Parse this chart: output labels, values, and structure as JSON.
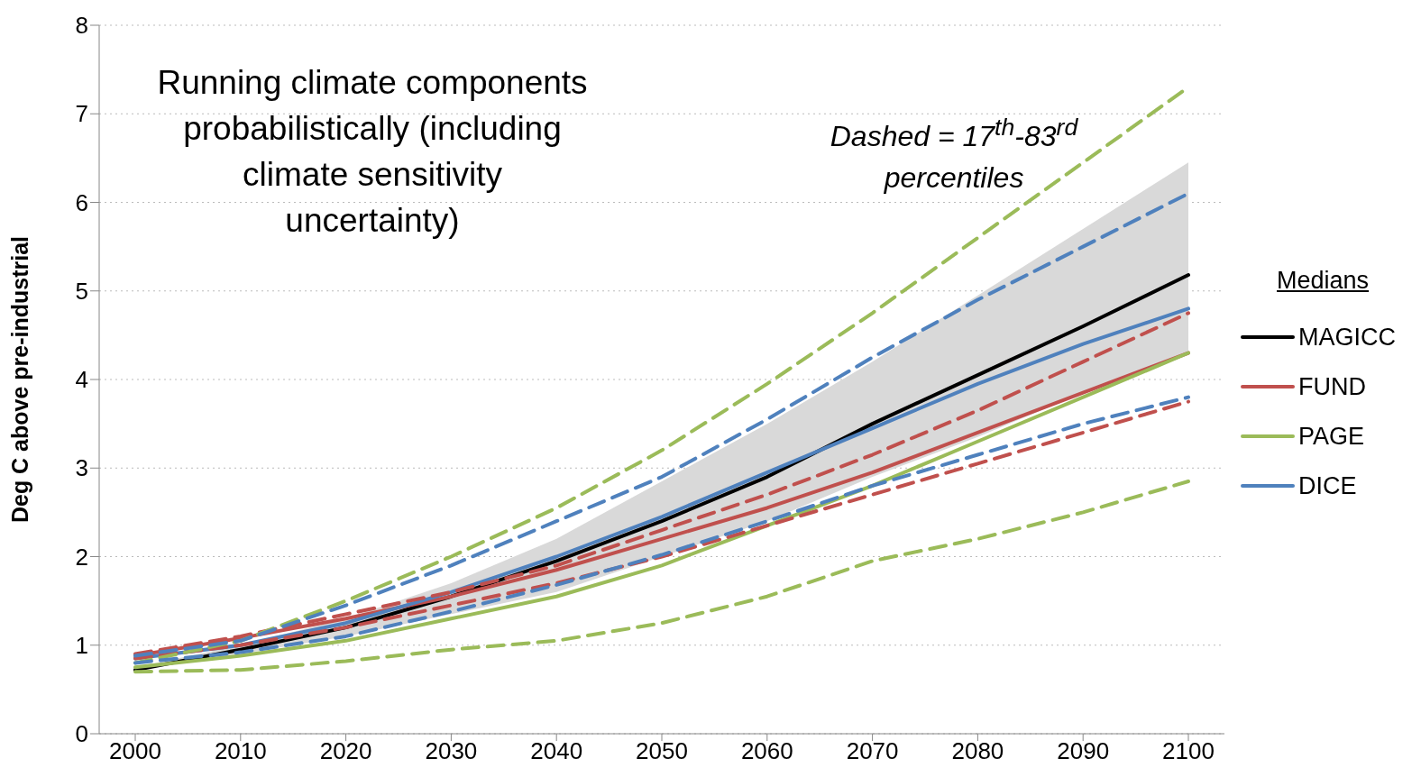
{
  "chart_data": {
    "type": "line",
    "ylabel": "Deg C above pre-industrial",
    "legend_title": "Medians",
    "legend": "right",
    "grid": "y",
    "categories": [
      "2000",
      "2010",
      "2020",
      "2030",
      "2040",
      "2050",
      "2060",
      "2070",
      "2080",
      "2090",
      "2100"
    ],
    "ylim": [
      0,
      8
    ],
    "yticks": [
      0,
      1,
      2,
      3,
      4,
      5,
      6,
      7,
      8
    ],
    "annotations": [
      "Running climate components probabilistically (including climate sensitivity uncertainty)",
      "Dashed = 17$^{th}$-83$^{rd}$ percentiles"
    ],
    "series": [
      {
        "name": "MAGICC",
        "color": "#000000",
        "values": [
          0.72,
          0.95,
          1.2,
          1.55,
          1.95,
          2.4,
          2.9,
          3.5,
          4.05,
          4.6,
          5.18
        ],
        "lower": [
          0.72,
          0.9,
          1.1,
          1.35,
          1.6,
          2.0,
          2.4,
          2.9,
          3.35,
          3.85,
          4.3
        ],
        "upper": [
          0.75,
          1.0,
          1.3,
          1.7,
          2.2,
          2.85,
          3.5,
          4.2,
          4.95,
          5.7,
          6.45
        ]
      },
      {
        "name": "FUND",
        "color": "#c0504d",
        "values": [
          0.88,
          1.08,
          1.3,
          1.55,
          1.85,
          2.2,
          2.55,
          2.95,
          3.4,
          3.85,
          4.3
        ]
      },
      {
        "name": "PAGE",
        "color": "#9bbb59",
        "values": [
          0.75,
          0.88,
          1.05,
          1.3,
          1.55,
          1.9,
          2.35,
          2.8,
          3.3,
          3.8,
          4.3
        ]
      },
      {
        "name": "DICE",
        "color": "#4f81bd",
        "values": [
          0.85,
          1.0,
          1.25,
          1.6,
          2.0,
          2.45,
          2.95,
          3.45,
          3.95,
          4.4,
          4.8
        ]
      },
      {
        "color": "#c0504d",
        "line_style": "dashed",
        "values": [
          0.9,
          1.1,
          1.35,
          1.6,
          1.9,
          2.3,
          2.7,
          3.15,
          3.65,
          4.2,
          4.75
        ]
      },
      {
        "color": "#c0504d",
        "line_style": "dashed",
        "values": [
          0.85,
          1.0,
          1.2,
          1.45,
          1.7,
          2.0,
          2.35,
          2.7,
          3.05,
          3.4,
          3.75
        ]
      },
      {
        "color": "#9bbb59",
        "line_style": "dashed",
        "values": [
          0.8,
          1.05,
          1.5,
          2.0,
          2.55,
          3.2,
          3.95,
          4.75,
          5.6,
          6.45,
          7.3
        ]
      },
      {
        "color": "#9bbb59",
        "line_style": "dashed",
        "values": [
          0.7,
          0.72,
          0.82,
          0.95,
          1.05,
          1.25,
          1.55,
          1.95,
          2.2,
          2.5,
          2.85
        ]
      },
      {
        "color": "#4f81bd",
        "line_style": "dashed",
        "values": [
          0.88,
          1.05,
          1.45,
          1.9,
          2.4,
          2.9,
          3.55,
          4.25,
          4.9,
          5.5,
          6.1
        ]
      },
      {
        "color": "#4f81bd",
        "line_style": "dashed",
        "values": [
          0.8,
          0.92,
          1.1,
          1.38,
          1.68,
          2.02,
          2.4,
          2.8,
          3.15,
          3.5,
          3.8
        ]
      }
    ]
  }
}
